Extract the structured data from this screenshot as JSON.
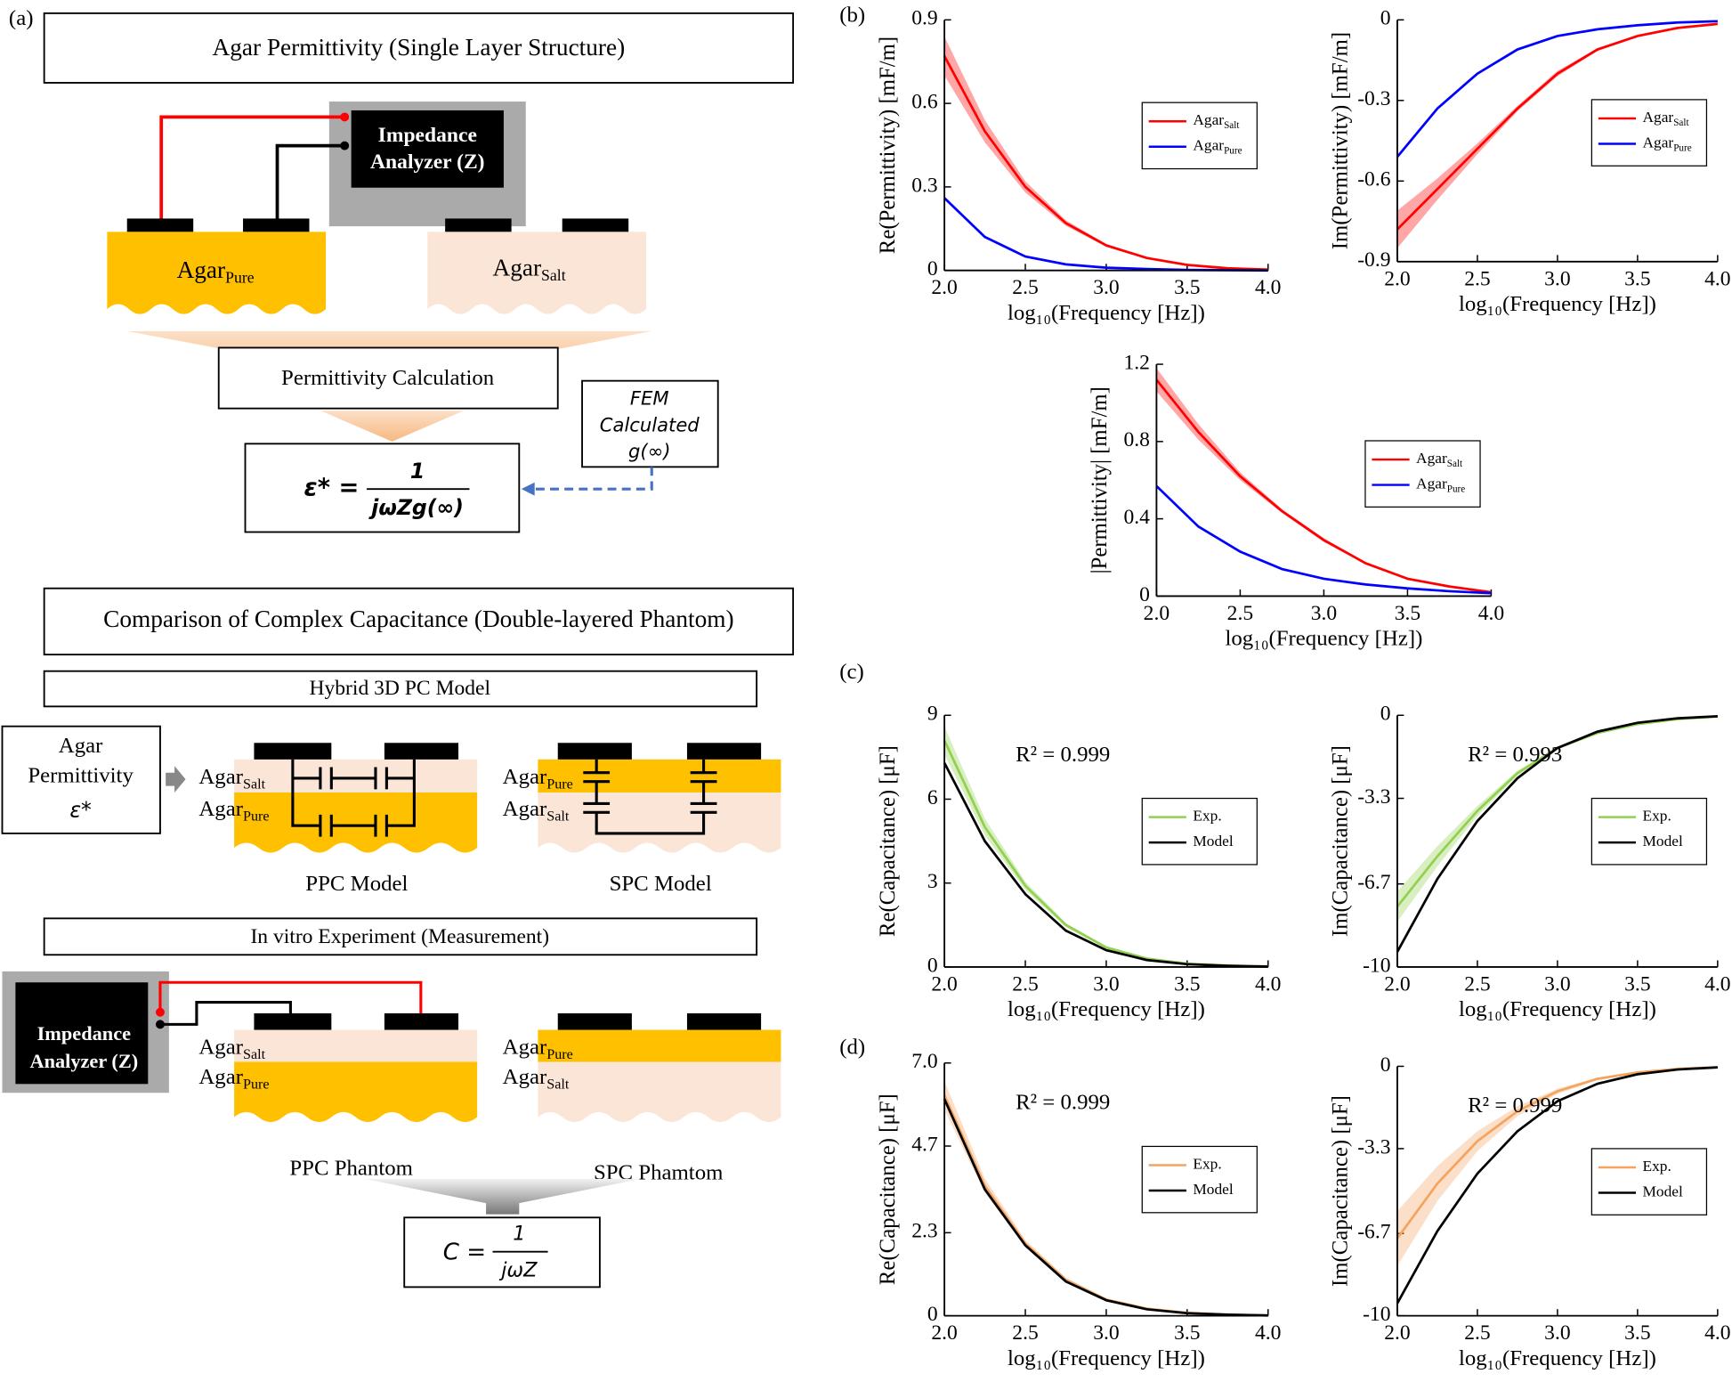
{
  "chart_data": [
    {
      "type": "line",
      "ylabel": "Re(Permittivity) [mF/m]",
      "xlabel": "log₁₀(Frequency [Hz])",
      "xlim": [
        2,
        4
      ],
      "ylim": [
        0,
        0.9
      ],
      "xticks": [
        {
          "value": 2,
          "label": "2.0"
        },
        2.5,
        {
          "value": 3,
          "label": "3.0"
        },
        3.5,
        {
          "value": 4,
          "label": "4.0"
        }
      ],
      "yticks": [
        0,
        0.3,
        0.6,
        0.9
      ],
      "legend": "right",
      "x": [
        2,
        2.25,
        2.5,
        2.75,
        3,
        3.25,
        3.5,
        3.75,
        4
      ],
      "series": [
        {
          "name": "Agar",
          "sub": "Salt",
          "color": "#ff0000",
          "values": [
            0.77,
            0.5,
            0.3,
            0.17,
            0.09,
            0.045,
            0.02,
            0.008,
            0.003
          ],
          "lower": [
            0.7,
            0.46,
            0.28,
            0.16,
            0.085,
            0.042,
            0.019,
            0.007,
            0.002
          ],
          "upper": [
            0.84,
            0.54,
            0.32,
            0.18,
            0.095,
            0.048,
            0.021,
            0.009,
            0.004
          ]
        },
        {
          "name": "Agar",
          "sub": "Pure",
          "color": "#0000ff",
          "values": [
            0.26,
            0.12,
            0.05,
            0.022,
            0.01,
            0.005,
            0.002,
            0.001,
            0
          ]
        }
      ]
    },
    {
      "type": "line",
      "ylabel": "Im(Permittivity) [mF/m]",
      "xlabel": "log₁₀(Frequency [Hz])",
      "xlim": [
        2,
        4
      ],
      "ylim": [
        -0.9,
        0
      ],
      "xticks": [
        {
          "value": 2,
          "label": "2.0"
        },
        2.5,
        {
          "value": 3,
          "label": "3.0"
        },
        3.5,
        {
          "value": 4,
          "label": "4.0"
        }
      ],
      "yticks": [
        -0.9,
        -0.6,
        -0.3,
        0
      ],
      "legend": "right",
      "x": [
        2,
        2.25,
        2.5,
        2.75,
        3,
        3.25,
        3.5,
        3.75,
        4
      ],
      "series": [
        {
          "name": "Agar",
          "sub": "Salt",
          "color": "#ff0000",
          "values": [
            -0.78,
            -0.63,
            -0.48,
            -0.33,
            -0.2,
            -0.11,
            -0.06,
            -0.03,
            -0.015
          ],
          "lower": [
            -0.85,
            -0.67,
            -0.5,
            -0.34,
            -0.21,
            -0.115,
            -0.062,
            -0.031,
            -0.016
          ],
          "upper": [
            -0.71,
            -0.59,
            -0.46,
            -0.32,
            -0.19,
            -0.105,
            -0.058,
            -0.029,
            -0.014
          ]
        },
        {
          "name": "Agar",
          "sub": "Pure",
          "color": "#0000ff",
          "values": [
            -0.51,
            -0.33,
            -0.2,
            -0.11,
            -0.06,
            -0.035,
            -0.02,
            -0.01,
            -0.005
          ]
        }
      ]
    },
    {
      "type": "line",
      "ylabel": "|Permittivity| [mF/m]",
      "xlabel": "log₁₀(Frequency [Hz])",
      "xlim": [
        2,
        4
      ],
      "ylim": [
        0,
        1.2
      ],
      "xticks": [
        {
          "value": 2,
          "label": "2.0"
        },
        2.5,
        {
          "value": 3,
          "label": "3.0"
        },
        3.5,
        {
          "value": 4,
          "label": "4.0"
        }
      ],
      "yticks": [
        0,
        0.4,
        0.8,
        1.2
      ],
      "legend": "right",
      "x": [
        2,
        2.25,
        2.5,
        2.75,
        3,
        3.25,
        3.5,
        3.75,
        4
      ],
      "series": [
        {
          "name": "Agar",
          "sub": "Salt",
          "color": "#ff0000",
          "values": [
            1.12,
            0.85,
            0.62,
            0.44,
            0.29,
            0.17,
            0.09,
            0.05,
            0.02
          ],
          "lower": [
            1.06,
            0.81,
            0.6,
            0.43,
            0.28,
            0.165,
            0.087,
            0.048,
            0.019
          ],
          "upper": [
            1.18,
            0.89,
            0.64,
            0.45,
            0.3,
            0.175,
            0.093,
            0.052,
            0.021
          ]
        },
        {
          "name": "Agar",
          "sub": "Pure",
          "color": "#0000ff",
          "values": [
            0.57,
            0.36,
            0.23,
            0.14,
            0.09,
            0.06,
            0.04,
            0.025,
            0.015
          ]
        }
      ]
    },
    {
      "type": "line",
      "ylabel": "Re(Capacitance) [μF]",
      "xlabel": "log₁₀(Frequency [Hz])",
      "annotation": "R² = 0.999",
      "xlim": [
        2,
        4
      ],
      "ylim": [
        0,
        9
      ],
      "xticks": [
        {
          "value": 2,
          "label": "2.0"
        },
        2.5,
        {
          "value": 3,
          "label": "3.0"
        },
        3.5,
        {
          "value": 4,
          "label": "4.0"
        }
      ],
      "yticks": [
        0,
        3,
        6,
        9
      ],
      "legend": "right",
      "x": [
        2,
        2.25,
        2.5,
        2.75,
        3,
        3.25,
        3.5,
        3.75,
        4
      ],
      "series": [
        {
          "name": "Exp.",
          "color": "#92d050",
          "values": [
            8.1,
            5,
            2.9,
            1.5,
            0.7,
            0.3,
            0.12,
            0.05,
            0.02
          ],
          "lower": [
            7.6,
            4.7,
            2.75,
            1.42,
            0.66,
            0.28,
            0.11,
            0.045,
            0.015
          ],
          "upper": [
            8.6,
            5.3,
            3.05,
            1.58,
            0.74,
            0.32,
            0.13,
            0.055,
            0.025
          ]
        },
        {
          "name": "Model",
          "color": "#000000",
          "values": [
            7.3,
            4.5,
            2.6,
            1.3,
            0.6,
            0.25,
            0.1,
            0.04,
            0.01
          ]
        }
      ]
    },
    {
      "type": "line",
      "ylabel": "Im(Capacitance) [μF]",
      "xlabel": "log₁₀(Frequency [Hz])",
      "annotation": "R² = 0.993",
      "xlim": [
        2,
        4
      ],
      "ylim": [
        -10,
        0
      ],
      "xticks": [
        {
          "value": 2,
          "label": "2.0"
        },
        2.5,
        {
          "value": 3,
          "label": "3.0"
        },
        3.5,
        {
          "value": 4,
          "label": "4.0"
        }
      ],
      "yticks": [
        -10,
        -6.7,
        -3.3,
        0
      ],
      "legend": "right",
      "x": [
        2,
        2.25,
        2.5,
        2.75,
        3,
        3.25,
        3.5,
        3.75,
        4
      ],
      "series": [
        {
          "name": "Exp.",
          "color": "#92d050",
          "values": [
            -7.6,
            -5.6,
            -3.8,
            -2.3,
            -1.3,
            -0.7,
            -0.35,
            -0.15,
            -0.05
          ],
          "lower": [
            -8.2,
            -6,
            -4,
            -2.4,
            -1.35,
            -0.73,
            -0.37,
            -0.16,
            -0.06
          ],
          "upper": [
            -7,
            -5.2,
            -3.6,
            -2.2,
            -1.25,
            -0.67,
            -0.33,
            -0.14,
            -0.04
          ]
        },
        {
          "name": "Model",
          "color": "#000000",
          "values": [
            -9.4,
            -6.5,
            -4.2,
            -2.5,
            -1.3,
            -0.65,
            -0.3,
            -0.12,
            -0.04
          ]
        }
      ]
    },
    {
      "type": "line",
      "ylabel": "Re(Capacitance) [μF]",
      "xlabel": "log₁₀(Frequency [Hz])",
      "annotation": "R² = 0.999",
      "xlim": [
        2,
        4
      ],
      "ylim": [
        0,
        7
      ],
      "xticks": [
        {
          "value": 2,
          "label": "2.0"
        },
        2.5,
        {
          "value": 3,
          "label": "3.0"
        },
        3.5,
        {
          "value": 4,
          "label": "4.0"
        }
      ],
      "yticks": [
        0,
        2.3,
        4.7,
        {
          "value": 7,
          "label": "7.0"
        }
      ],
      "legend": "right",
      "x": [
        2,
        2.25,
        2.5,
        2.75,
        3,
        3.25,
        3.5,
        3.75,
        4
      ],
      "series": [
        {
          "name": "Exp.",
          "color": "#f4a460",
          "values": [
            6.1,
            3.6,
            2,
            1,
            0.45,
            0.2,
            0.08,
            0.03,
            0.01
          ],
          "lower": [
            5.7,
            3.4,
            1.9,
            0.95,
            0.42,
            0.18,
            0.07,
            0.025,
            0.008
          ],
          "upper": [
            6.5,
            3.8,
            2.1,
            1.05,
            0.48,
            0.22,
            0.09,
            0.035,
            0.012
          ]
        },
        {
          "name": "Model",
          "color": "#000000",
          "values": [
            6,
            3.5,
            1.95,
            0.95,
            0.43,
            0.18,
            0.07,
            0.03,
            0.01
          ]
        }
      ]
    },
    {
      "type": "line",
      "ylabel": "Im(Capacitance) [μF]",
      "xlabel": "log₁₀(Frequency [Hz])",
      "annotation": "R² = 0.999",
      "xlim": [
        2,
        4
      ],
      "ylim": [
        -10,
        0
      ],
      "xticks": [
        {
          "value": 2,
          "label": "2.0"
        },
        2.5,
        {
          "value": 3,
          "label": "3.0"
        },
        3.5,
        {
          "value": 4,
          "label": "4.0"
        }
      ],
      "yticks": [
        -10,
        -6.7,
        -3.3,
        0
      ],
      "legend": "right",
      "x": [
        2,
        2.25,
        2.5,
        2.75,
        3,
        3.25,
        3.5,
        3.75,
        4
      ],
      "series": [
        {
          "name": "Exp.",
          "color": "#f4a460",
          "values": [
            -6.9,
            -4.7,
            -3,
            -1.8,
            -1,
            -0.5,
            -0.25,
            -0.1,
            -0.04
          ],
          "lower": [
            -8,
            -5.4,
            -3.4,
            -2,
            -1.1,
            -0.55,
            -0.27,
            -0.11,
            -0.045
          ],
          "upper": [
            -5.8,
            -4,
            -2.6,
            -1.6,
            -0.9,
            -0.45,
            -0.23,
            -0.09,
            -0.035
          ]
        },
        {
          "name": "Model",
          "color": "#000000",
          "values": [
            -9.5,
            -6.6,
            -4.3,
            -2.6,
            -1.4,
            -0.7,
            -0.32,
            -0.13,
            -0.04
          ]
        }
      ]
    }
  ],
  "diagram": {
    "panel_labels": [
      "(a)",
      "(b)",
      "(c)",
      "(d)"
    ],
    "title_single": "Agar Permittivity (Single Layer Structure)",
    "analyzer": [
      "Impedance",
      "Analyzer (Z)"
    ],
    "agar_pure": {
      "base": "Agar",
      "sub": "Pure"
    },
    "agar_salt": {
      "base": "Agar",
      "sub": "Salt"
    },
    "permittivity_calc": "Permittivity Calculation",
    "eq1": {
      "lhs": "ε* =",
      "num": "1",
      "den": "jωZg(∞)"
    },
    "fem": [
      "FEM",
      "Calculated",
      "g(∞)"
    ],
    "title_double": "Comparison of Complex Capacitance (Double-layered Phantom)",
    "hybrid": "Hybrid 3D PC Model",
    "agar_permittivity": [
      "Agar",
      "Permittivity",
      "ε*"
    ],
    "ppc_model": "PPC Model",
    "spc_model": "SPC Model",
    "in_vitro": "In vitro Experiment (Measurement)",
    "ppc_phantom": "PPC Phantom",
    "spc_phantom": "SPC Phamtom",
    "eq2": {
      "lhs": "C =",
      "num": "1",
      "den": "jωZ"
    }
  }
}
